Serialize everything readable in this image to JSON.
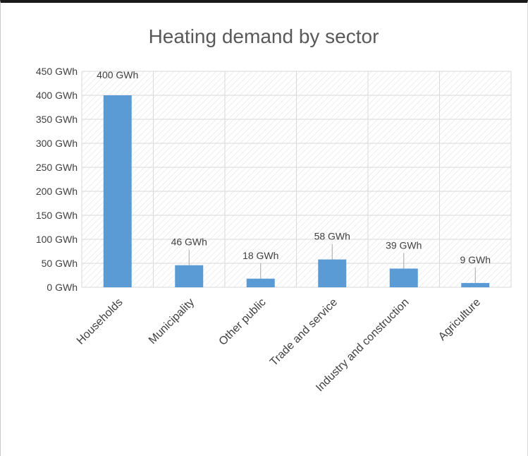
{
  "chart_data": {
    "type": "bar",
    "title": "Heating demand by sector",
    "xlabel": "",
    "ylabel": "",
    "categories": [
      "Households",
      "Municipality",
      "Other public",
      "Trade and service",
      "Industry and construction",
      "Agriculture"
    ],
    "values": [
      400,
      46,
      18,
      58,
      39,
      9
    ],
    "data_labels": [
      "400 GWh",
      "46 GWh",
      "18 GWh",
      "58 GWh",
      "39 GWh",
      "9 GWh"
    ],
    "y_ticks": [
      0,
      50,
      100,
      150,
      200,
      250,
      300,
      350,
      400,
      450
    ],
    "y_tick_labels": [
      "0 GWh",
      "50 GWh",
      "100 GWh",
      "150 GWh",
      "200 GWh",
      "250 GWh",
      "300 GWh",
      "350 GWh",
      "400 GWh",
      "450 GWh"
    ],
    "ylim": [
      0,
      450
    ],
    "grid": true,
    "legend": "none",
    "colors": {
      "bar": "#5b9bd5",
      "grid": "#d9d9d9",
      "plot_hatch": "#e4e4e4",
      "text": "#404040",
      "title": "#595959"
    }
  }
}
